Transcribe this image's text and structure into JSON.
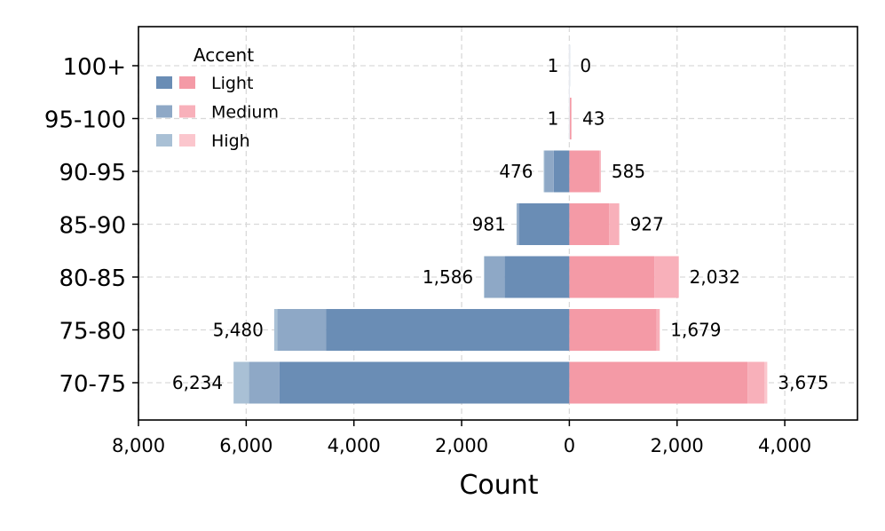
{
  "chart_data": {
    "type": "bar",
    "orientation": "horizontal",
    "layout": "population-pyramid (blue to the left, pink to the right)",
    "categories": [
      "100+",
      "95-100",
      "90-95",
      "85-90",
      "80-85",
      "75-80",
      "70-75"
    ],
    "left_side": {
      "color_shades": [
        "#6a8db5",
        "#8ea8c6",
        "#a9c0d5"
      ],
      "segments": {
        "Light": [
          0,
          0,
          290,
          930,
          1200,
          4520,
          5380
        ],
        "Medium": [
          1,
          1,
          170,
          40,
          380,
          900,
          570
        ],
        "High": [
          0,
          0,
          16,
          11,
          6,
          60,
          284
        ]
      },
      "totals": [
        1,
        1,
        476,
        981,
        1586,
        5480,
        6234
      ],
      "total_labels": [
        "1",
        "1",
        "476",
        "981",
        "1,586",
        "5,480",
        "6,234"
      ]
    },
    "right_side": {
      "color_shades": [
        "#f49aa6",
        "#f8b0ba",
        "#fbc6cd"
      ],
      "segments": {
        "Light": [
          0,
          30,
          560,
          740,
          1580,
          1620,
          3310
        ],
        "Medium": [
          0,
          13,
          25,
          187,
          452,
          59,
          315
        ],
        "High": [
          0,
          0,
          0,
          0,
          0,
          0,
          50
        ]
      },
      "totals": [
        0,
        43,
        585,
        927,
        2032,
        1679,
        3675
      ],
      "total_labels": [
        "0",
        "43",
        "585",
        "927",
        "2,032",
        "1,679",
        "3,675"
      ]
    },
    "legend": {
      "title": "Accent",
      "entries": [
        "Light",
        "Medium",
        "High"
      ],
      "placement": "upper-left"
    },
    "xlabel": "Count",
    "xlim": [
      -8000,
      5350
    ],
    "xticks": [
      -8000,
      -6000,
      -4000,
      -2000,
      0,
      2000,
      4000
    ],
    "xtick_labels": [
      "8,000",
      "6,000",
      "4,000",
      "2,000",
      "0",
      "2,000",
      "4,000"
    ],
    "grid": true
  }
}
